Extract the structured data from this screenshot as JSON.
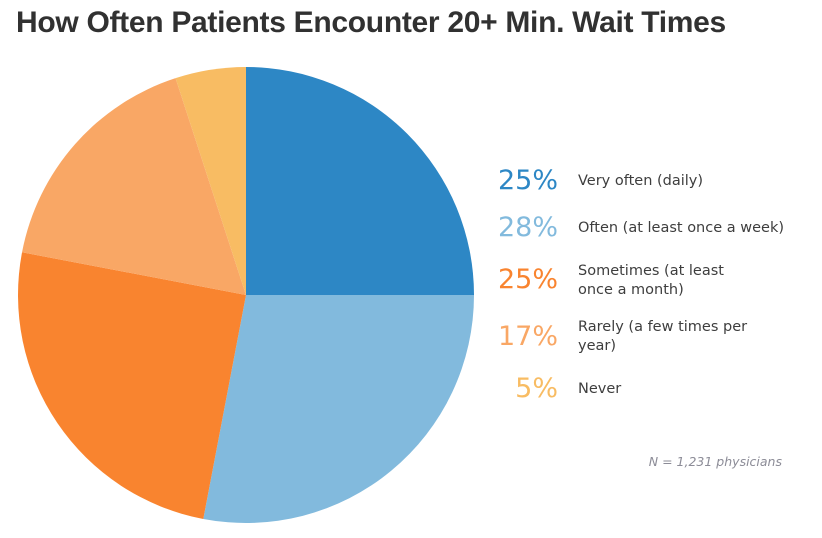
{
  "page": {
    "title": "How Often Patients Encounter 20+ Min. Wait Times",
    "footnote": "N = 1,231 physicians"
  },
  "chart_data": {
    "type": "pie",
    "title": "How Often Patients Encounter 20+ Min. Wait Times",
    "start_angle_deg": 0,
    "direction": "clockwise",
    "legend_position": "right",
    "sample_note": "N = 1,231 physicians",
    "slices": [
      {
        "label": "Very often (daily)",
        "label_lines": [
          "Very often (daily)"
        ],
        "value": 25,
        "pct_label": "25%",
        "color": "#2d87c5"
      },
      {
        "label": "Often (at least once a week)",
        "label_lines": [
          "Often (at least once a week)"
        ],
        "value": 28,
        "pct_label": "28%",
        "color": "#82badd"
      },
      {
        "label": "Sometimes (at least once a month)",
        "label_lines": [
          "Sometimes (at least",
          "once a month)"
        ],
        "value": 25,
        "pct_label": "25%",
        "color": "#f9842f"
      },
      {
        "label": "Rarely (a few times per year)",
        "label_lines": [
          "Rarely (a few times per",
          "year)"
        ],
        "value": 17,
        "pct_label": "17%",
        "color": "#f9a765"
      },
      {
        "label": "Never",
        "label_lines": [
          "Never"
        ],
        "value": 5,
        "pct_label": "5%",
        "color": "#f8bc63"
      }
    ]
  },
  "colors": {
    "background": "#ffffff",
    "title_text": "#313131",
    "label_text": "#3e3e3e",
    "footnote_text": "#8c8c97"
  }
}
